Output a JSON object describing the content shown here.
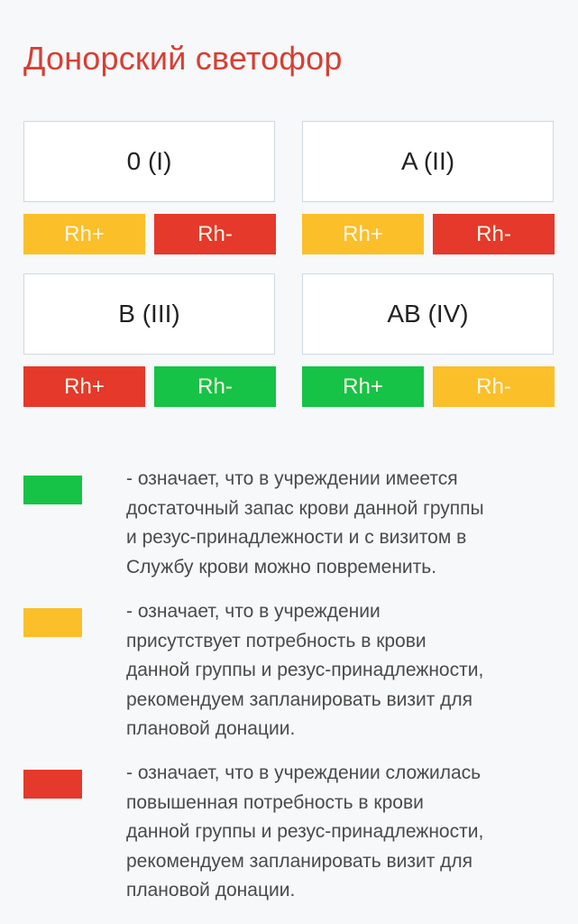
{
  "title": "Донорский светофор",
  "colors": {
    "green": "#16c346",
    "yellow": "#fbbf2a",
    "red": "#e5392b"
  },
  "groups": [
    {
      "name": "0 (I)",
      "rh_plus": "Rh+",
      "rh_plus_status": "yellow",
      "rh_minus": "Rh-",
      "rh_minus_status": "red"
    },
    {
      "name": "A (II)",
      "rh_plus": "Rh+",
      "rh_plus_status": "yellow",
      "rh_minus": "Rh-",
      "rh_minus_status": "red"
    },
    {
      "name": "B (III)",
      "rh_plus": "Rh+",
      "rh_plus_status": "red",
      "rh_minus": "Rh-",
      "rh_minus_status": "green"
    },
    {
      "name": "AB (IV)",
      "rh_plus": "Rh+",
      "rh_plus_status": "green",
      "rh_minus": "Rh-",
      "rh_minus_status": "yellow"
    }
  ],
  "legend": [
    {
      "color": "green",
      "lines": [
        "- означает, что в учреждении имеется",
        "достаточный запас крови данной группы",
        "и резус-принадлежности и с визитом в",
        "Службу крови можно повременить."
      ]
    },
    {
      "color": "yellow",
      "lines": [
        "- означает, что в учреждении",
        "присутствует потребность в крови",
        "данной группы и резус-принадлежности,",
        "рекомендуем запланировать визит для",
        "плановой донации."
      ]
    },
    {
      "color": "red",
      "lines": [
        "- означает, что в учреждении сложилась",
        "повышенная потребность в крови",
        "данной группы и резус-принадлежности,",
        "рекомендуем запланировать визит для",
        "плановой донации."
      ]
    }
  ]
}
